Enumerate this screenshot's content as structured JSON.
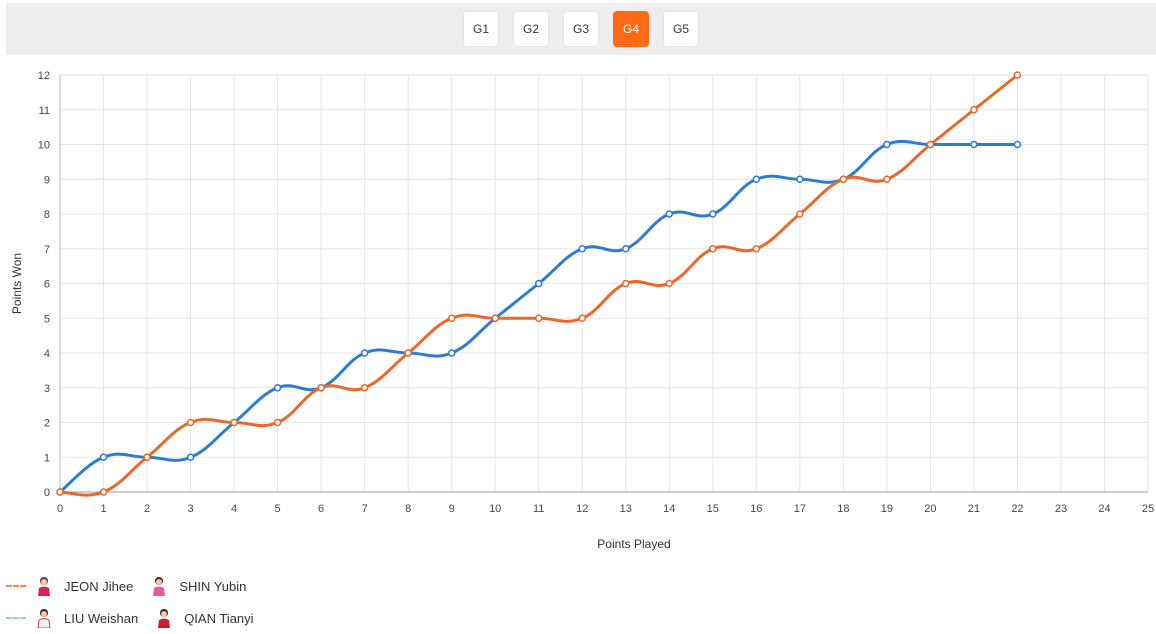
{
  "tabs": [
    {
      "label": "G1",
      "active": false
    },
    {
      "label": "G2",
      "active": false
    },
    {
      "label": "G3",
      "active": false
    },
    {
      "label": "G4",
      "active": true
    },
    {
      "label": "G5",
      "active": false
    }
  ],
  "colors": {
    "blue": "#2e7bcf",
    "orange": "#e8692c",
    "grid": "#e6e6e6",
    "active_tab": "#ff6a13"
  },
  "legend": {
    "teams": [
      {
        "color": "#ff8a4c",
        "players": [
          "JEON Jihee",
          "SHIN Yubin"
        ],
        "avatars": [
          "player-avatar-icon",
          "player-avatar-icon"
        ]
      },
      {
        "color": "#8fd3f7",
        "players": [
          "LIU Weishan",
          "QIAN Tianyi"
        ],
        "avatars": [
          "player-avatar-icon",
          "player-avatar-icon"
        ]
      }
    ]
  },
  "chart_data": {
    "type": "line",
    "xlabel": "Points Played",
    "ylabel": "Points Won",
    "xlim": [
      0,
      25
    ],
    "ylim": [
      0,
      12
    ],
    "xticks": [
      0,
      1,
      2,
      3,
      4,
      5,
      6,
      7,
      8,
      9,
      10,
      11,
      12,
      13,
      14,
      15,
      16,
      17,
      18,
      19,
      20,
      21,
      22,
      23,
      24,
      25
    ],
    "yticks": [
      0,
      1,
      2,
      3,
      4,
      5,
      6,
      7,
      8,
      9,
      10,
      11,
      12
    ],
    "grid": true,
    "x": [
      0,
      1,
      2,
      3,
      4,
      5,
      6,
      7,
      8,
      9,
      10,
      11,
      12,
      13,
      14,
      15,
      16,
      17,
      18,
      19,
      20,
      21,
      22
    ],
    "series": [
      {
        "color": "#2e7bcf",
        "values": [
          0,
          1,
          1,
          1,
          2,
          3,
          3,
          4,
          4,
          4,
          5,
          6,
          7,
          7,
          8,
          8,
          9,
          9,
          9,
          10,
          10,
          10,
          10
        ]
      },
      {
        "color": "#e8692c",
        "values": [
          0,
          0,
          1,
          2,
          2,
          2,
          3,
          3,
          4,
          5,
          5,
          5,
          5,
          6,
          6,
          7,
          7,
          8,
          9,
          9,
          10,
          11,
          12
        ]
      }
    ]
  }
}
